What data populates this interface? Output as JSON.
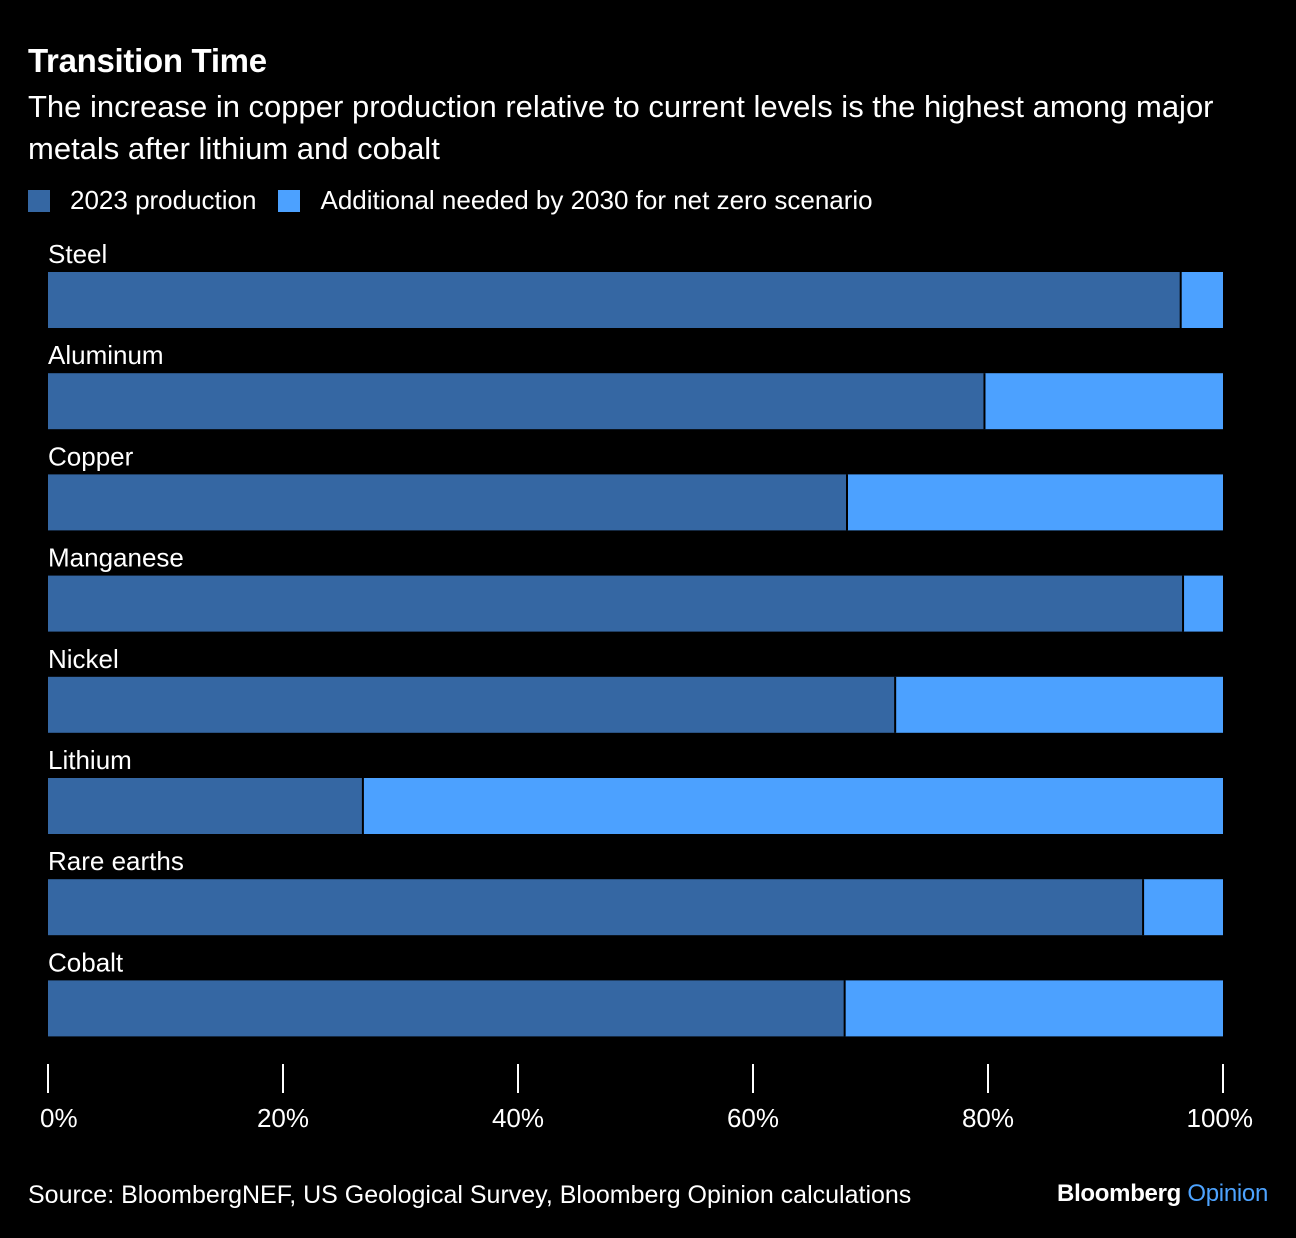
{
  "title": "Transition Time",
  "subtitle": "The increase in copper production relative to current levels is the highest among major metals after lithium and cobalt",
  "source": "Source: BloombergNEF, US Geological Survey, Bloomberg Opinion calculations",
  "brand": {
    "name": "Bloomberg",
    "accent": "Opinion"
  },
  "colors": {
    "background": "#000000",
    "production_2023": "#3567a3",
    "additional_2030": "#4ca1ff",
    "text": "#ffffff"
  },
  "chart_data": {
    "type": "bar",
    "orientation": "horizontal",
    "stacked": true,
    "categories": [
      "Steel",
      "Aluminum",
      "Copper",
      "Manganese",
      "Nickel",
      "Lithium",
      "Rare earths",
      "Cobalt"
    ],
    "series": [
      {
        "name": "2023 production",
        "values": [
          96.4,
          79.7,
          68.0,
          96.6,
          72.1,
          26.8,
          93.2,
          67.8
        ]
      },
      {
        "name": "Additional needed by 2030 for net zero scenario",
        "values": [
          3.6,
          20.3,
          32.0,
          3.4,
          27.9,
          73.2,
          6.8,
          32.2
        ]
      }
    ],
    "xlim": [
      0,
      100
    ],
    "xticks": [
      0,
      20,
      40,
      60,
      80,
      100
    ],
    "xtick_labels": [
      "0%",
      "20%",
      "40%",
      "60%",
      "80%",
      "100%"
    ],
    "legend": "top-left",
    "grid": false
  }
}
